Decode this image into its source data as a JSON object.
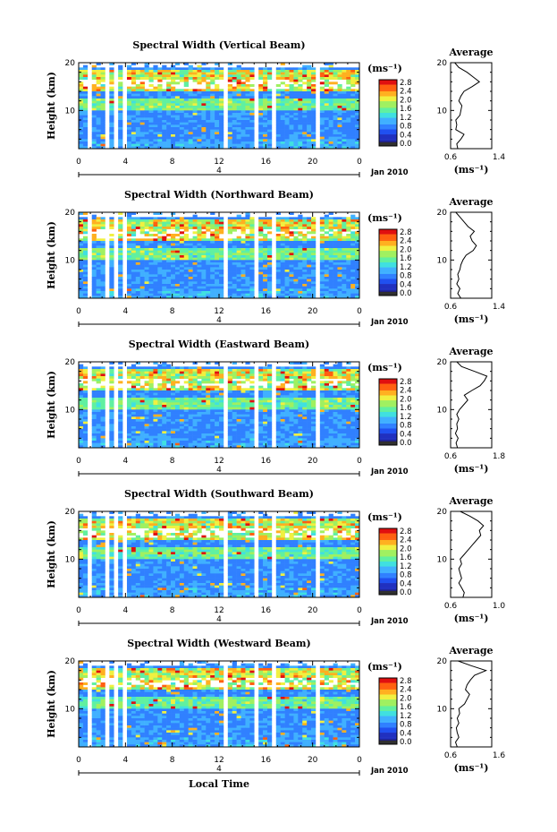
{
  "figure": {
    "ylabel": "Height (km)",
    "xlabel": "Local Time",
    "month_label": "Jan 2010",
    "day_label": "4",
    "avg_title": "Average",
    "avg_xlabel": "(ms⁻¹)",
    "cb_unit": "(ms⁻¹)",
    "colors": [
      "#202080",
      "#2030c0",
      "#2050f0",
      "#3080ff",
      "#40b0ff",
      "#40e0e0",
      "#60f0a0",
      "#a0f060",
      "#f0f040",
      "#ffb020",
      "#ff6010",
      "#e01010"
    ]
  },
  "chart_data": [
    {
      "type": "heatmap",
      "title": "Spectral Width (Vertical Beam)",
      "x_ticks": [
        "0",
        "4",
        "8",
        "12",
        "16",
        "20",
        "0"
      ],
      "y_ticks": [
        "10",
        "20"
      ],
      "xlim": [
        0,
        24
      ],
      "ylim": [
        2,
        20
      ],
      "colorbar_ticks": [
        "0.0",
        "0.4",
        "0.8",
        "1.2",
        "1.6",
        "2.0",
        "2.4",
        "2.8"
      ],
      "average": {
        "xlim": [
          0.6,
          1.4
        ],
        "x_ticks": [
          "0.6",
          "1.4"
        ],
        "y_ticks": [
          "10",
          "20"
        ],
        "height": [
          2,
          3,
          4,
          5,
          6,
          7,
          8,
          9,
          10,
          11,
          12,
          13,
          14,
          15,
          16,
          17,
          18,
          19,
          20
        ],
        "width": [
          0.74,
          0.72,
          0.8,
          0.86,
          0.7,
          0.72,
          0.7,
          0.78,
          0.8,
          0.82,
          0.76,
          0.8,
          0.86,
          1.02,
          1.16,
          1.04,
          0.92,
          0.76,
          0.68
        ]
      }
    },
    {
      "type": "heatmap",
      "title": "Spectral Width (Northward Beam)",
      "x_ticks": [
        "0",
        "4",
        "8",
        "12",
        "16",
        "20",
        "0"
      ],
      "y_ticks": [
        "10",
        "20"
      ],
      "xlim": [
        0,
        24
      ],
      "ylim": [
        2,
        20
      ],
      "colorbar_ticks": [
        "0.0",
        "0.4",
        "0.8",
        "1.2",
        "1.6",
        "2.0",
        "2.4",
        "2.8"
      ],
      "average": {
        "xlim": [
          0.6,
          1.4
        ],
        "x_ticks": [
          "0.6",
          "1.4"
        ],
        "y_ticks": [
          "10",
          "20"
        ],
        "height": [
          2,
          3,
          4,
          5,
          6,
          7,
          8,
          9,
          10,
          11,
          12,
          13,
          14,
          15,
          16,
          17,
          18,
          19,
          20
        ],
        "width": [
          0.8,
          0.74,
          0.78,
          0.72,
          0.76,
          0.74,
          0.78,
          0.8,
          0.84,
          0.9,
          1.04,
          1.1,
          1.02,
          0.98,
          1.06,
          0.94,
          0.86,
          0.78,
          0.7
        ]
      }
    },
    {
      "type": "heatmap",
      "title": "Spectral Width (Eastward Beam)",
      "x_ticks": [
        "0",
        "4",
        "8",
        "12",
        "16",
        "20",
        "0"
      ],
      "y_ticks": [
        "10",
        "20"
      ],
      "xlim": [
        0,
        24
      ],
      "ylim": [
        2,
        20
      ],
      "colorbar_ticks": [
        "0.0",
        "0.4",
        "0.8",
        "1.2",
        "1.6",
        "2.0",
        "2.4",
        "2.8"
      ],
      "average": {
        "xlim": [
          0.6,
          1.8
        ],
        "x_ticks": [
          "0.6",
          "1.8"
        ],
        "y_ticks": [
          "10",
          "20"
        ],
        "height": [
          2,
          3,
          4,
          5,
          6,
          7,
          8,
          9,
          10,
          11,
          12,
          13,
          14,
          15,
          16,
          17,
          18,
          19,
          20
        ],
        "width": [
          0.8,
          0.76,
          0.82,
          0.74,
          0.8,
          0.78,
          0.84,
          0.78,
          0.86,
          0.98,
          1.1,
          1.0,
          1.22,
          1.46,
          1.58,
          1.66,
          1.3,
          0.92,
          0.78
        ]
      }
    },
    {
      "type": "heatmap",
      "title": "Spectral Width (Southward Beam)",
      "x_ticks": [
        "0",
        "4",
        "8",
        "12",
        "16",
        "20",
        "0"
      ],
      "y_ticks": [
        "10",
        "20"
      ],
      "xlim": [
        0,
        24
      ],
      "ylim": [
        2,
        20
      ],
      "colorbar_ticks": [
        "0.0",
        "0.4",
        "0.8",
        "1.2",
        "1.6",
        "2.0",
        "2.4",
        "2.8"
      ],
      "average": {
        "xlim": [
          0.6,
          1.2
        ],
        "x_ticks": [
          "0.6",
          "1.0"
        ],
        "y_ticks": [
          "10",
          "20"
        ],
        "height": [
          2,
          3,
          4,
          5,
          6,
          7,
          8,
          9,
          10,
          11,
          12,
          13,
          14,
          15,
          16,
          17,
          18,
          19,
          20
        ],
        "width": [
          0.78,
          0.8,
          0.76,
          0.72,
          0.76,
          0.74,
          0.72,
          0.76,
          0.74,
          0.8,
          0.86,
          0.92,
          0.98,
          1.04,
          1.02,
          1.08,
          1.0,
          0.88,
          0.74
        ]
      }
    },
    {
      "type": "heatmap",
      "title": "Spectral Width (Westward Beam)",
      "x_ticks": [
        "0",
        "4",
        "8",
        "12",
        "16",
        "20",
        "0"
      ],
      "y_ticks": [
        "10",
        "20"
      ],
      "xlim": [
        0,
        24
      ],
      "ylim": [
        2,
        20
      ],
      "colorbar_ticks": [
        "0.0",
        "0.4",
        "0.8",
        "1.2",
        "1.6",
        "2.0",
        "2.4",
        "2.8"
      ],
      "average": {
        "xlim": [
          0.6,
          1.6
        ],
        "x_ticks": [
          "0.6",
          "1.6"
        ],
        "y_ticks": [
          "10",
          "20"
        ],
        "height": [
          2,
          3,
          4,
          5,
          6,
          7,
          8,
          9,
          10,
          11,
          12,
          13,
          14,
          15,
          16,
          17,
          18,
          19,
          20
        ],
        "width": [
          0.76,
          0.72,
          0.8,
          0.76,
          0.74,
          0.8,
          0.76,
          0.82,
          0.8,
          0.94,
          1.0,
          1.06,
          0.96,
          1.0,
          1.08,
          1.18,
          1.46,
          1.1,
          0.78
        ]
      }
    }
  ]
}
